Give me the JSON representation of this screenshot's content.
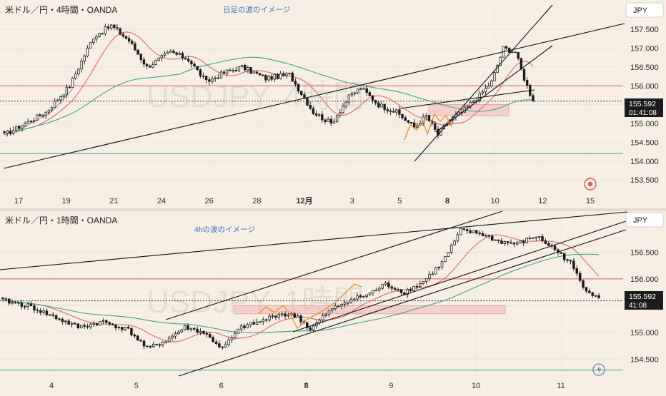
{
  "colors": {
    "background": "#f7efe3",
    "candle": "#1a1a1a",
    "ma_fast": "#e06666",
    "ma_slow": "#3aa883",
    "ma_gray": "#9a9a9a",
    "h_red": "#e05a5a",
    "h_green": "#3aa883",
    "zone": "#f3b8b8",
    "wave": "#f08a24",
    "price_box": "#1c1c1c",
    "note": "#3d6fc4"
  },
  "top": {
    "title": "米ドル／円・4時間・OANDA",
    "note": "日足の波のイメージ",
    "currency": "JPY",
    "watermark": "USDJPY, 4時間",
    "price_label": "155.592",
    "countdown": "01:41:08",
    "alert_icon": "record-icon"
  },
  "bottom": {
    "title": "米ドル／円・1時間・OANDA",
    "note": "4hの波のイメージ",
    "currency": "JPY",
    "watermark": "USDJPY, 1時間",
    "price_label": "155.592",
    "countdown": "41:08",
    "alert_icon": "lightning-icon"
  },
  "chart_data": [
    {
      "type": "candlestick",
      "title": "米ドル／円・4時間・OANDA",
      "annotation": "日足の波のイメージ",
      "ylim": [
        153.2,
        157.9
      ],
      "y_ticks": [
        153.5,
        154.0,
        154.5,
        155.0,
        155.5,
        156.0,
        156.5,
        157.0,
        157.5
      ],
      "y_tick_labels": [
        "153.500",
        "154.000",
        "154.500",
        "155.000",
        "155.500",
        "156.000",
        "156.500",
        "157.000",
        "157.500"
      ],
      "x_tick_labels": [
        "17",
        "19",
        "21",
        "24",
        "26",
        "28",
        "12月",
        "3",
        "5",
        "8",
        "10",
        "12",
        "15"
      ],
      "close_anchors": [
        [
          0,
          154.7
        ],
        [
          7,
          155.0
        ],
        [
          14,
          155.3
        ],
        [
          22,
          156.0
        ],
        [
          30,
          157.3
        ],
        [
          36,
          157.6
        ],
        [
          42,
          157.2
        ],
        [
          48,
          156.5
        ],
        [
          56,
          156.9
        ],
        [
          62,
          156.7
        ],
        [
          68,
          156.1
        ],
        [
          74,
          156.35
        ],
        [
          80,
          156.5
        ],
        [
          88,
          156.2
        ],
        [
          96,
          156.3
        ],
        [
          104,
          155.3
        ],
        [
          110,
          155.0
        ],
        [
          116,
          155.7
        ],
        [
          120,
          155.95
        ],
        [
          126,
          155.5
        ],
        [
          132,
          155.3
        ],
        [
          138,
          154.9
        ],
        [
          142,
          155.2
        ],
        [
          146,
          154.7
        ],
        [
          150,
          155.1
        ],
        [
          154,
          155.3
        ],
        [
          160,
          155.75
        ],
        [
          164,
          156.1
        ],
        [
          168,
          157.0
        ],
        [
          172,
          156.9
        ],
        [
          175,
          156.2
        ],
        [
          178,
          155.59
        ]
      ],
      "last_price": 155.592,
      "h_levels_red": [
        156.0
      ],
      "h_levels_green": [
        154.2
      ],
      "support_zone": [
        155.2,
        155.5
      ]
    },
    {
      "type": "candlestick",
      "title": "米ドル／円・1時間・OANDA",
      "annotation": "4hの波のイメージ",
      "ylim": [
        154.15,
        157.05
      ],
      "y_ticks": [
        154.5,
        155.0,
        155.5,
        156.0,
        156.5
      ],
      "y_tick_labels": [
        "154.500",
        "155.000",
        "",
        "156.000",
        "156.500"
      ],
      "x_tick_labels": [
        "4",
        "5",
        "6",
        "8",
        "9",
        "10",
        "11"
      ],
      "close_anchors": [
        [
          0,
          155.6
        ],
        [
          8,
          155.5
        ],
        [
          16,
          155.3
        ],
        [
          24,
          155.1
        ],
        [
          32,
          155.2
        ],
        [
          40,
          155.05
        ],
        [
          46,
          154.7
        ],
        [
          52,
          154.85
        ],
        [
          58,
          155.1
        ],
        [
          64,
          155.0
        ],
        [
          70,
          154.7
        ],
        [
          76,
          155.1
        ],
        [
          82,
          155.2
        ],
        [
          88,
          155.35
        ],
        [
          94,
          155.3
        ],
        [
          98,
          155.05
        ],
        [
          104,
          155.4
        ],
        [
          110,
          155.6
        ],
        [
          116,
          155.7
        ],
        [
          122,
          155.9
        ],
        [
          128,
          155.75
        ],
        [
          134,
          155.95
        ],
        [
          140,
          156.3
        ],
        [
          146,
          156.9
        ],
        [
          152,
          156.85
        ],
        [
          158,
          156.7
        ],
        [
          164,
          156.65
        ],
        [
          170,
          156.8
        ],
        [
          176,
          156.55
        ],
        [
          181,
          156.3
        ],
        [
          185,
          155.85
        ],
        [
          190,
          155.65
        ]
      ],
      "last_price": 155.592,
      "h_levels_red": [
        156.0
      ],
      "h_levels_green": [
        154.3
      ],
      "support_zone": [
        155.35,
        155.5
      ]
    }
  ]
}
